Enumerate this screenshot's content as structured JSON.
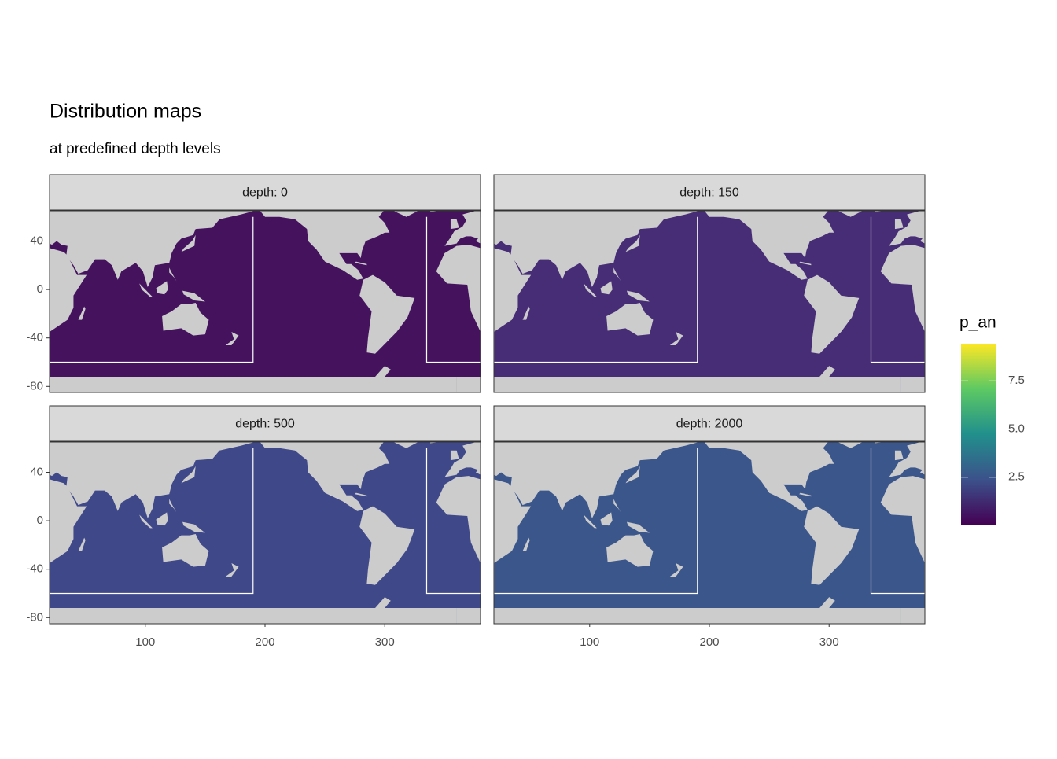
{
  "chart_data": {
    "type": "raster_map",
    "title": "Distribution maps",
    "subtitle": "at predefined depth levels",
    "facets": [
      {
        "label": "depth: 0",
        "color": "#45135e"
      },
      {
        "label": "depth: 150",
        "color": "#472d76"
      },
      {
        "label": "depth: 500",
        "color": "#3f4889"
      },
      {
        "label": "depth: 2000",
        "color": "#3b568b"
      }
    ],
    "xlim": [
      20,
      380
    ],
    "ylim": [
      -85,
      65
    ],
    "xticks": [
      100,
      200,
      300
    ],
    "yticks": [
      40,
      0,
      -40,
      -80
    ],
    "boxes": [
      [
        20,
        190,
        -60,
        60
      ],
      [
        335,
        380,
        -60,
        60
      ]
    ],
    "box_color": "#ffffff",
    "land_color": "#cccccc",
    "legend": {
      "title": "p_an",
      "limits": [
        0.04,
        9.43
      ],
      "ticks": [
        2.5,
        {
          "value": 5,
          "label": "5.0"
        },
        7.5
      ],
      "palette": [
        "#440154",
        "#3b528b",
        "#21908c",
        "#5dc963",
        "#fde725"
      ]
    }
  }
}
